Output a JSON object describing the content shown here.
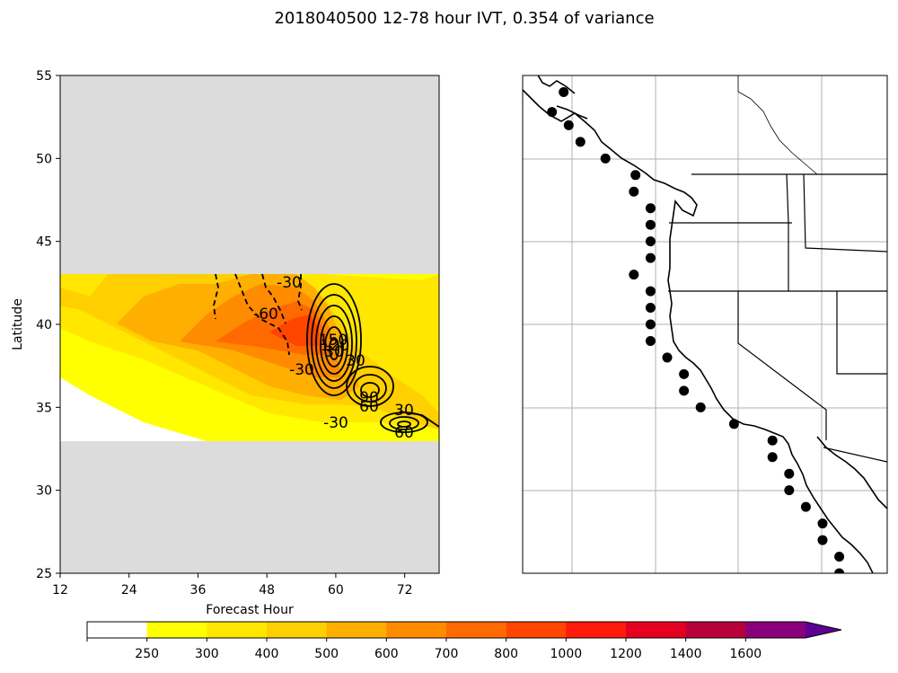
{
  "figure": {
    "title": "2018040500 12-78 hour IVT, 0.354 of variance"
  },
  "chart_data": [
    {
      "type": "heatmap",
      "panel": "left",
      "title": "",
      "xlabel": "Forecast Hour",
      "ylabel": "Latitude",
      "xlim": [
        12,
        78
      ],
      "ylim": [
        25,
        55
      ],
      "xticks": [
        12,
        24,
        36,
        48,
        60,
        72
      ],
      "yticks": [
        25,
        30,
        35,
        40,
        45,
        50,
        55
      ],
      "data_lat_range": [
        33,
        43
      ],
      "no_data_color": "#dcdcdc",
      "fill_levels": [
        {
          "x": [
            12,
            14,
            17,
            20,
            24,
            28,
            33,
            38,
            42,
            46,
            50,
            55,
            58,
            61,
            64,
            67,
            70,
            74,
            78
          ],
          "level": "250-300"
        },
        {
          "x": [
            12,
            16,
            20,
            25,
            30,
            35,
            40,
            44,
            48,
            52,
            56,
            60,
            64,
            68,
            72,
            75
          ],
          "level": "300-400"
        },
        {
          "x": [
            14,
            20,
            26,
            32,
            38,
            44,
            50,
            56,
            60,
            64,
            68,
            72
          ],
          "level": "400-500"
        },
        {
          "x": [
            28,
            34,
            40,
            46,
            52,
            58,
            62,
            66
          ],
          "level": "500-600"
        },
        {
          "x": [
            40,
            46,
            52,
            56,
            60
          ],
          "level": "600-700"
        },
        {
          "x": [
            46,
            52,
            56
          ],
          "level": "700-800"
        }
      ],
      "contour_labels": [
        "-30",
        "-60",
        "-30",
        "-30",
        "30",
        "30",
        "30",
        "60",
        "60",
        "90",
        "120",
        "150"
      ]
    },
    {
      "type": "map",
      "panel": "right",
      "title": "",
      "region": "US West Coast",
      "points": [
        {
          "lat": 54.0,
          "lon": -130.5
        },
        {
          "lat": 52.8,
          "lon": -131.2
        },
        {
          "lat": 52.0,
          "lon": -130.2
        },
        {
          "lat": 51.0,
          "lon": -129.5
        },
        {
          "lat": 50.0,
          "lon": -128.0
        },
        {
          "lat": 49.0,
          "lon": -126.2
        },
        {
          "lat": 48.0,
          "lon": -126.3
        },
        {
          "lat": 47.0,
          "lon": -125.3
        },
        {
          "lat": 46.0,
          "lon": -125.3
        },
        {
          "lat": 45.0,
          "lon": -125.3
        },
        {
          "lat": 44.0,
          "lon": -125.3
        },
        {
          "lat": 43.0,
          "lon": -126.3
        },
        {
          "lat": 42.0,
          "lon": -125.3
        },
        {
          "lat": 41.0,
          "lon": -125.3
        },
        {
          "lat": 40.0,
          "lon": -125.3
        },
        {
          "lat": 39.0,
          "lon": -125.3
        },
        {
          "lat": 38.0,
          "lon": -124.3
        },
        {
          "lat": 37.0,
          "lon": -123.3
        },
        {
          "lat": 36.0,
          "lon": -123.3
        },
        {
          "lat": 35.0,
          "lon": -122.3
        },
        {
          "lat": 34.0,
          "lon": -120.3
        },
        {
          "lat": 33.0,
          "lon": -118.0
        },
        {
          "lat": 32.0,
          "lon": -118.0
        },
        {
          "lat": 31.0,
          "lon": -117.0
        },
        {
          "lat": 30.0,
          "lon": -117.0
        },
        {
          "lat": 29.0,
          "lon": -116.0
        },
        {
          "lat": 28.0,
          "lon": -115.0
        },
        {
          "lat": 27.0,
          "lon": -115.0
        },
        {
          "lat": 26.0,
          "lon": -114.0
        },
        {
          "lat": 25.0,
          "lon": -114.0
        }
      ]
    }
  ],
  "colorbar": {
    "tick_labels": [
      "250",
      "300",
      "400",
      "500",
      "600",
      "700",
      "800",
      "1000",
      "1200",
      "1400",
      "1600"
    ],
    "colors": [
      "#ffffff",
      "#ffff00",
      "#ffe700",
      "#ffcf00",
      "#ffaf00",
      "#ff8c00",
      "#ff6a00",
      "#ff4500",
      "#ff1a0a",
      "#e60020",
      "#b8003a",
      "#8a007a",
      "#5b0092"
    ]
  }
}
